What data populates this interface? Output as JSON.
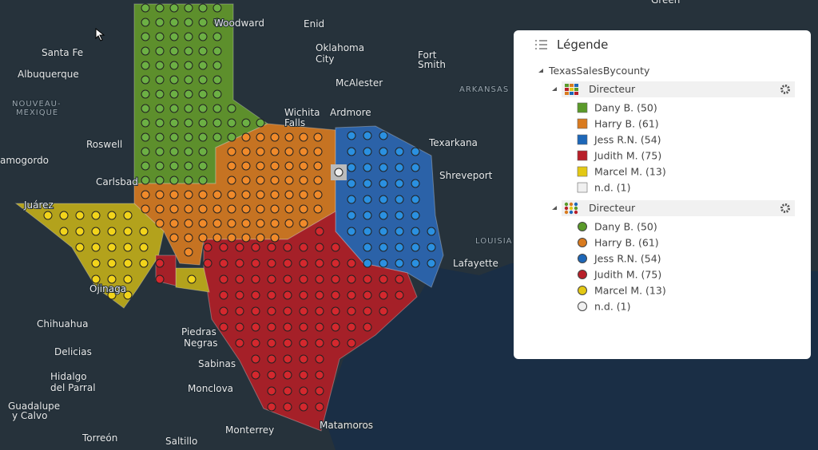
{
  "map": {
    "labels": [
      "Woodward",
      "Enid",
      "Oklahoma",
      "City",
      "Santa Fe",
      "Albuquerque",
      "NOUVEAU-",
      "MEXIQUE",
      "Fort",
      "Smith",
      "McAlester",
      "ARKANSAS",
      "Wichita",
      "Falls",
      "Ardmore",
      "Roswell",
      "Texarkana",
      "Shreveport",
      "amogordo",
      "Carlsbad",
      "Juárez",
      "LOUISIA",
      "Lafayette",
      "Ojinaga",
      "Chihuahua",
      "Delicias",
      "Piedras",
      "Negras",
      "Hidalgo",
      "del Parral",
      "Monclova",
      "Sabinas",
      "Guadalupe",
      "y Calvo",
      "Torreón",
      "Saltillo",
      "Monterrey",
      "Matamoros",
      "Green"
    ]
  },
  "legend": {
    "title": "Légende",
    "layer": "TexasSalesBycounty",
    "groups": [
      {
        "title": "Directeur",
        "items": [
          "Dany B. (50)",
          "Harry B. (61)",
          "Jess R.N. (54)",
          "Judith M. (75)",
          "Marcel M. (13)",
          "n.d. (1)"
        ]
      },
      {
        "title": "Directeur",
        "items": [
          "Dany B. (50)",
          "Harry B. (61)",
          "Jess R.N. (54)",
          "Judith M. (75)",
          "Marcel M. (13)",
          "n.d. (1)"
        ]
      }
    ]
  }
}
